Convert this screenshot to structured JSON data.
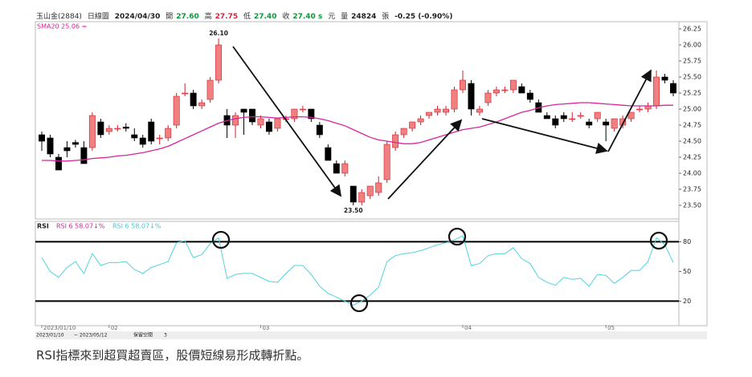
{
  "header": {
    "symbol": "玉山金(2884)",
    "period": "日線圖",
    "date": "2024/04/30",
    "open_label": "開",
    "open": "27.60",
    "high_label": "高",
    "high": "27.75",
    "low_label": "低",
    "low": "27.40",
    "close_label": "收",
    "close": "27.40 s",
    "unit": "元",
    "volume_label": "量",
    "volume": "24824",
    "volume_unit": "張",
    "change": "-0.25 (-0.90%)"
  },
  "chart_data": [
    {
      "type": "candlestick",
      "legend": "SMA20 25.06 =",
      "up_color": "#f08080",
      "down_color": "#000000",
      "sma_color": "#d6249c",
      "ylim": [
        23.3,
        26.35
      ],
      "yticks": [
        {
          "value": 23.5,
          "label": "23.50"
        },
        23.75,
        {
          "value": 24,
          "label": "24.00"
        },
        24.25,
        {
          "value": 24.5,
          "label": "24.50"
        },
        24.75,
        {
          "value": 25,
          "label": "25.00"
        },
        25.25,
        {
          "value": 25.5,
          "label": "25.50"
        },
        25.75,
        {
          "value": 26,
          "label": "26.00"
        },
        26.25
      ],
      "annotations": [
        {
          "text": "26.10",
          "at": 21
        },
        {
          "text": "23.50",
          "at": 37
        }
      ],
      "candles": [
        {
          "open": 24.6,
          "high": 24.65,
          "low": 24.35,
          "close": 24.5
        },
        {
          "open": 24.55,
          "high": 24.6,
          "low": 24.25,
          "close": 24.3
        },
        {
          "open": 24.25,
          "high": 24.3,
          "low": 24.05,
          "close": 24.05
        },
        {
          "open": 24.4,
          "high": 24.5,
          "low": 24.25,
          "close": 24.35
        },
        {
          "open": 24.48,
          "high": 24.52,
          "low": 24.4,
          "close": 24.45
        },
        {
          "open": 24.4,
          "high": 24.5,
          "low": 24.15,
          "close": 24.15
        },
        {
          "open": 24.4,
          "high": 24.95,
          "low": 24.35,
          "close": 24.9
        },
        {
          "open": 24.8,
          "high": 24.85,
          "low": 24.55,
          "close": 24.6
        },
        {
          "open": 24.65,
          "high": 24.75,
          "low": 24.6,
          "close": 24.7
        },
        {
          "open": 24.7,
          "high": 24.75,
          "low": 24.65,
          "close": 24.7
        },
        {
          "open": 24.72,
          "high": 24.78,
          "low": 24.65,
          "close": 24.7
        },
        {
          "open": 24.6,
          "high": 24.7,
          "low": 24.5,
          "close": 24.55
        },
        {
          "open": 24.55,
          "high": 24.6,
          "low": 24.4,
          "close": 24.45
        },
        {
          "open": 24.8,
          "high": 24.85,
          "low": 24.45,
          "close": 24.5
        },
        {
          "open": 24.55,
          "high": 24.6,
          "low": 24.45,
          "close": 24.55
        },
        {
          "open": 24.55,
          "high": 24.75,
          "low": 24.5,
          "close": 24.7
        },
        {
          "open": 24.75,
          "high": 25.25,
          "low": 24.7,
          "close": 25.2
        },
        {
          "open": 25.25,
          "high": 25.4,
          "low": 25.2,
          "close": 25.25
        },
        {
          "open": 25.25,
          "high": 25.3,
          "low": 25.0,
          "close": 25.05
        },
        {
          "open": 25.05,
          "high": 25.15,
          "low": 25.0,
          "close": 25.1
        },
        {
          "open": 25.15,
          "high": 25.5,
          "low": 25.1,
          "close": 25.45
        },
        {
          "open": 25.45,
          "high": 26.1,
          "low": 25.4,
          "close": 26.0
        },
        {
          "open": 24.9,
          "high": 25.0,
          "low": 24.55,
          "close": 24.75
        },
        {
          "open": 24.75,
          "high": 24.95,
          "low": 24.55,
          "close": 24.9
        },
        {
          "open": 25.0,
          "high": 25.0,
          "low": 24.6,
          "close": 24.95
        },
        {
          "open": 25.0,
          "high": 25.0,
          "low": 24.75,
          "close": 24.8
        },
        {
          "open": 24.75,
          "high": 24.9,
          "low": 24.7,
          "close": 24.85
        },
        {
          "open": 24.8,
          "high": 24.85,
          "low": 24.6,
          "close": 24.65
        },
        {
          "open": 24.7,
          "high": 24.85,
          "low": 24.65,
          "close": 24.85
        },
        {
          "open": 24.85,
          "high": 24.9,
          "low": 24.8,
          "close": 24.85
        },
        {
          "open": 24.85,
          "high": 25.0,
          "low": 24.8,
          "close": 25.0
        },
        {
          "open": 25.0,
          "high": 25.05,
          "low": 24.95,
          "close": 25.0
        },
        {
          "open": 25.0,
          "high": 25.0,
          "low": 24.8,
          "close": 24.85
        },
        {
          "open": 24.75,
          "high": 24.8,
          "low": 24.55,
          "close": 24.6
        },
        {
          "open": 24.4,
          "high": 24.45,
          "low": 24.2,
          "close": 24.2
        },
        {
          "open": 24.15,
          "high": 24.2,
          "low": 24.0,
          "close": 24.0
        },
        {
          "open": 24.0,
          "high": 24.2,
          "low": 23.95,
          "close": 24.15
        },
        {
          "open": 23.8,
          "high": 23.8,
          "low": 23.5,
          "close": 23.55
        },
        {
          "open": 23.55,
          "high": 23.75,
          "low": 23.5,
          "close": 23.7
        },
        {
          "open": 23.65,
          "high": 23.8,
          "low": 23.6,
          "close": 23.8
        },
        {
          "open": 23.7,
          "high": 23.95,
          "low": 23.65,
          "close": 23.85
        },
        {
          "open": 23.9,
          "high": 24.5,
          "low": 23.85,
          "close": 24.45
        },
        {
          "open": 24.4,
          "high": 24.65,
          "low": 24.35,
          "close": 24.6
        },
        {
          "open": 24.6,
          "high": 24.7,
          "low": 24.55,
          "close": 24.7
        },
        {
          "open": 24.7,
          "high": 24.8,
          "low": 24.65,
          "close": 24.8
        },
        {
          "open": 24.8,
          "high": 24.9,
          "low": 24.75,
          "close": 24.85
        },
        {
          "open": 24.9,
          "high": 24.95,
          "low": 24.85,
          "close": 24.95
        },
        {
          "open": 24.95,
          "high": 25.05,
          "low": 24.9,
          "close": 25.0
        },
        {
          "open": 24.95,
          "high": 25.05,
          "low": 24.9,
          "close": 25.0
        },
        {
          "open": 25.0,
          "high": 25.35,
          "low": 24.95,
          "close": 25.3
        },
        {
          "open": 25.3,
          "high": 25.6,
          "low": 25.25,
          "close": 25.45
        },
        {
          "open": 25.4,
          "high": 25.45,
          "low": 24.9,
          "close": 25.0
        },
        {
          "open": 24.95,
          "high": 25.05,
          "low": 24.9,
          "close": 25.0
        },
        {
          "open": 25.1,
          "high": 25.3,
          "low": 25.05,
          "close": 25.25
        },
        {
          "open": 25.25,
          "high": 25.35,
          "low": 25.2,
          "close": 25.3
        },
        {
          "open": 25.3,
          "high": 25.35,
          "low": 25.25,
          "close": 25.3
        },
        {
          "open": 25.3,
          "high": 25.45,
          "low": 25.25,
          "close": 25.45
        },
        {
          "open": 25.35,
          "high": 25.4,
          "low": 25.25,
          "close": 25.25
        },
        {
          "open": 25.25,
          "high": 25.3,
          "low": 25.1,
          "close": 25.15
        },
        {
          "open": 25.1,
          "high": 25.15,
          "low": 24.95,
          "close": 24.95
        },
        {
          "open": 24.9,
          "high": 24.95,
          "low": 24.85,
          "close": 24.85
        },
        {
          "open": 24.85,
          "high": 24.9,
          "low": 24.7,
          "close": 24.75
        },
        {
          "open": 24.9,
          "high": 24.95,
          "low": 24.8,
          "close": 24.85
        },
        {
          "open": 24.85,
          "high": 24.95,
          "low": 24.8,
          "close": 24.85
        },
        {
          "open": 24.9,
          "high": 24.95,
          "low": 24.85,
          "close": 24.9
        },
        {
          "open": 24.8,
          "high": 24.85,
          "low": 24.7,
          "close": 24.75
        },
        {
          "open": 24.85,
          "high": 24.95,
          "low": 24.8,
          "close": 24.95
        },
        {
          "open": 24.8,
          "high": 24.85,
          "low": 24.5,
          "close": 24.75
        },
        {
          "open": 24.7,
          "high": 24.85,
          "low": 24.65,
          "close": 24.85
        },
        {
          "open": 24.75,
          "high": 24.9,
          "low": 24.7,
          "close": 24.85
        },
        {
          "open": 24.85,
          "high": 24.95,
          "low": 24.8,
          "close": 24.95
        },
        {
          "open": 25.0,
          "high": 25.05,
          "low": 24.95,
          "close": 25.0
        },
        {
          "open": 25.0,
          "high": 25.1,
          "low": 24.95,
          "close": 25.05
        },
        {
          "open": 25.05,
          "high": 25.6,
          "low": 25.0,
          "close": 25.5
        },
        {
          "open": 25.5,
          "high": 25.55,
          "low": 25.4,
          "close": 25.45
        },
        {
          "open": 25.4,
          "high": 25.45,
          "low": 25.2,
          "close": 25.25
        }
      ],
      "sma": [
        24.2,
        24.2,
        24.19,
        24.19,
        24.2,
        24.21,
        24.23,
        24.24,
        24.25,
        24.27,
        24.28,
        24.3,
        24.32,
        24.35,
        24.38,
        24.42,
        24.48,
        24.54,
        24.6,
        24.66,
        24.72,
        24.78,
        24.82,
        24.85,
        24.87,
        24.88,
        24.88,
        24.87,
        24.86,
        24.87,
        24.88,
        24.88,
        24.87,
        24.85,
        24.82,
        24.78,
        24.74,
        24.68,
        24.62,
        24.56,
        24.52,
        24.5,
        24.48,
        24.46,
        24.46,
        24.48,
        24.52,
        24.56,
        24.6,
        24.64,
        24.68,
        24.7,
        24.72,
        24.76,
        24.8,
        24.85,
        24.9,
        24.95,
        24.98,
        25.02,
        25.05,
        25.07,
        25.08,
        25.09,
        25.1,
        25.1,
        25.09,
        25.08,
        25.07,
        25.06,
        25.05,
        25.05,
        25.05,
        25.05,
        25.06,
        25.06
      ]
    },
    {
      "type": "line",
      "title": "RSI",
      "legend": [
        "RSI 6 58.07↓%",
        "RSI 6 58.07↓%"
      ],
      "legend_colors": [
        "#d6249c",
        "#3cc8d8"
      ],
      "color": "#4fd3e0",
      "ylim": [
        -4,
        99
      ],
      "yticks": [
        20,
        50,
        80
      ],
      "bands": [
        80,
        20
      ],
      "categories": [
        "2023/01/10",
        null,
        null,
        null,
        null,
        null,
        null,
        null,
        "02",
        null,
        null,
        null,
        null,
        null,
        null,
        null,
        null,
        null,
        null,
        null,
        null,
        null,
        null,
        null,
        null,
        null,
        "03",
        null,
        null,
        null,
        null,
        null,
        null,
        null,
        null,
        null,
        null,
        null,
        null,
        null,
        null,
        null,
        null,
        null,
        null,
        null,
        null,
        null,
        null,
        null,
        "04",
        null,
        null,
        null,
        null,
        null,
        null,
        null,
        null,
        null,
        null,
        null,
        null,
        null,
        null,
        null,
        null,
        "05",
        null,
        null,
        null,
        null,
        null,
        null,
        null,
        null
      ],
      "values": [
        64,
        50,
        44,
        54,
        60,
        48,
        68,
        56,
        59,
        59,
        60,
        52,
        48,
        54,
        57,
        60,
        79,
        81,
        64,
        67,
        78,
        84,
        43,
        47,
        48,
        48,
        44,
        40,
        39,
        48,
        56,
        56,
        47,
        35,
        28,
        24,
        20,
        16,
        20,
        26,
        34,
        60,
        66,
        68,
        69,
        71,
        74,
        77,
        79,
        82,
        86,
        56,
        58,
        66,
        68,
        68,
        74,
        63,
        58,
        44,
        39,
        36,
        44,
        42,
        43,
        35,
        47,
        46,
        38,
        44,
        51,
        51,
        60,
        84,
        77,
        59
      ]
    }
  ],
  "controls": {
    "from": "2023/01/10",
    "to": "~ 2023/05/12",
    "space_label": "保留空間",
    "space": "3"
  },
  "caption": "RSI指標來到超買超賣區，股價短線易形成轉折點。"
}
